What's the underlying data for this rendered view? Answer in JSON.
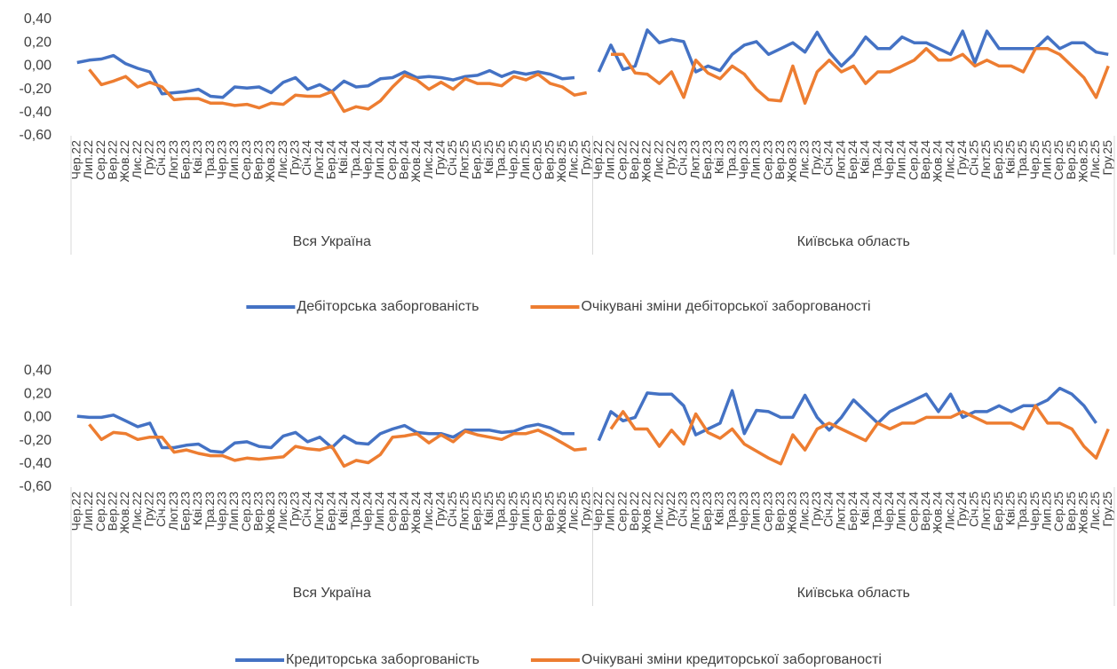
{
  "chart_data": [
    {
      "type": "line",
      "groups": [
        {
          "name": "Вся Україна",
          "categories": [
            "Чер.22",
            "Лип.22",
            "Сер.22",
            "Вер.22",
            "Жов.22",
            "Лис.22",
            "Гру.22",
            "Січ.23",
            "Лют.23",
            "Бер.23",
            "Кві.23",
            "Тра.23",
            "Чер.23",
            "Лип.23",
            "Сер.23",
            "Вер.23",
            "Жов.23",
            "Лис.23",
            "Гру.23",
            "Січ.24",
            "Лют.24",
            "Бер.24",
            "Кві.24",
            "Тра.24",
            "Чер.24",
            "Лип.24",
            "Сер.24",
            "Вер.24",
            "Жов.24",
            "Лис.24",
            "Гру.24",
            "Січ.25",
            "Лют.25",
            "Бер.25",
            "Кві.25",
            "Тра.25",
            "Чер.25",
            "Лип.25",
            "Сер.25",
            "Вер.25",
            "Жов.25",
            "Лис.25",
            "Гру.25"
          ]
        },
        {
          "name": "Київська область",
          "categories": [
            "Чер.22",
            "Лип.22",
            "Сер.22",
            "Вер.22",
            "Жов.22",
            "Лис.22",
            "Гру.22",
            "Січ.23",
            "Лют.23",
            "Бер.23",
            "Кві.23",
            "Тра.23",
            "Чер.23",
            "Лип.23",
            "Сер.23",
            "Вер.23",
            "Жов.23",
            "Лис.23",
            "Гру.23",
            "Січ.24",
            "Лют.24",
            "Бер.24",
            "Кві.24",
            "Тра.24",
            "Чер.24",
            "Лип.24",
            "Сер.24",
            "Вер.24",
            "Жов.24",
            "Лис.24",
            "Гру.24",
            "Січ.25",
            "Лют.25",
            "Бер.25",
            "Кві.25",
            "Тра.25",
            "Чер.25",
            "Лип.25",
            "Сер.25",
            "Вер.25",
            "Жов.25",
            "Лис.25",
            "Гру.25"
          ]
        }
      ],
      "series": [
        {
          "name": "Дебіторська заборгованість",
          "color": "#4472c4",
          "values": [
            0.03,
            0.05,
            0.06,
            0.09,
            0.02,
            -0.02,
            -0.05,
            -0.24,
            -0.23,
            -0.22,
            -0.2,
            -0.26,
            -0.27,
            -0.18,
            -0.19,
            -0.18,
            -0.23,
            -0.14,
            -0.1,
            -0.2,
            -0.16,
            -0.22,
            -0.13,
            -0.18,
            -0.17,
            -0.11,
            -0.1,
            -0.05,
            -0.1,
            -0.09,
            -0.1,
            -0.12,
            -0.09,
            -0.08,
            -0.04,
            -0.09,
            -0.05,
            -0.07,
            -0.05,
            -0.07,
            -0.11,
            -0.1,
            null,
            -0.05,
            0.18,
            -0.03,
            0.0,
            0.31,
            0.2,
            0.23,
            0.21,
            -0.05,
            0.0,
            -0.04,
            0.1,
            0.18,
            0.21,
            0.1,
            0.15,
            0.2,
            0.12,
            0.29,
            0.12,
            0.0,
            0.1,
            0.25,
            0.15,
            0.15,
            0.25,
            0.2,
            0.2,
            0.15,
            0.1,
            0.3,
            0.03,
            0.3,
            0.15,
            0.15,
            0.15,
            0.15,
            0.25,
            0.15,
            0.2,
            0.2,
            0.12,
            0.1
          ]
        },
        {
          "name": "Очікувані зміни дебіторської заборгованості",
          "color": "#ed7d31",
          "values": [
            null,
            -0.03,
            -0.16,
            -0.13,
            -0.09,
            -0.18,
            -0.14,
            -0.18,
            -0.29,
            -0.28,
            -0.28,
            -0.32,
            -0.32,
            -0.34,
            -0.33,
            -0.36,
            -0.32,
            -0.33,
            -0.25,
            -0.26,
            -0.26,
            -0.22,
            -0.39,
            -0.35,
            -0.37,
            -0.3,
            -0.18,
            -0.08,
            -0.12,
            -0.2,
            -0.14,
            -0.2,
            -0.11,
            -0.15,
            -0.15,
            -0.17,
            -0.09,
            -0.12,
            -0.07,
            -0.15,
            -0.18,
            -0.25,
            -0.23,
            null,
            0.1,
            0.1,
            -0.06,
            -0.07,
            -0.15,
            -0.05,
            -0.27,
            0.05,
            -0.06,
            -0.11,
            0.0,
            -0.07,
            -0.2,
            -0.29,
            -0.3,
            0.0,
            -0.32,
            -0.05,
            0.05,
            -0.05,
            0.0,
            -0.15,
            -0.05,
            -0.05,
            0.0,
            0.05,
            0.15,
            0.05,
            0.05,
            0.1,
            0.0,
            0.05,
            0.0,
            0.0,
            -0.05,
            0.15,
            0.15,
            0.1,
            0.0,
            -0.1,
            -0.27,
            0.0
          ]
        }
      ],
      "ylim": [
        -0.6,
        0.4
      ],
      "yticks": [
        {
          "value": 0.4,
          "label": "0,40"
        },
        {
          "value": 0.2,
          "label": "0,20"
        },
        {
          "value": 0,
          "label": "0,00"
        },
        {
          "value": -0.2,
          "label": "-0,20"
        },
        {
          "value": -0.4,
          "label": "-0,40"
        },
        {
          "value": -0.6,
          "label": "-0,60"
        }
      ]
    },
    {
      "type": "line",
      "groups": [
        {
          "name": "Вся Україна",
          "categories": [
            "Чер.22",
            "Лип.22",
            "Сер.22",
            "Вер.22",
            "Жов.22",
            "Лис.22",
            "Гру.22",
            "Січ.23",
            "Лют.23",
            "Бер.23",
            "Кві.23",
            "Тра.23",
            "Чер.23",
            "Лип.23",
            "Сер.23",
            "Вер.23",
            "Жов.23",
            "Лис.23",
            "Гру.23",
            "Січ.24",
            "Лют.24",
            "Бер.24",
            "Кві.24",
            "Тра.24",
            "Чер.24",
            "Лип.24",
            "Сер.24",
            "Вер.24",
            "Жов.24",
            "Лис.24",
            "Гру.24",
            "Січ.25",
            "Лют.25",
            "Бер.25",
            "Кві.25",
            "Тра.25",
            "Чер.25",
            "Лип.25",
            "Сер.25",
            "Вер.25",
            "Жов.25",
            "Лис.25",
            "Гру.25"
          ]
        },
        {
          "name": "Київська область",
          "categories": [
            "Чер.22",
            "Лип.22",
            "Сер.22",
            "Вер.22",
            "Жов.22",
            "Лис.22",
            "Гру.22",
            "Січ.23",
            "Лют.23",
            "Бер.23",
            "Кві.23",
            "Тра.23",
            "Чер.23",
            "Лип.23",
            "Сер.23",
            "Вер.23",
            "Жов.23",
            "Лис.23",
            "Гру.23",
            "Січ.24",
            "Лют.24",
            "Бер.24",
            "Кві.24",
            "Тра.24",
            "Чер.24",
            "Лип.24",
            "Сер.24",
            "Вер.24",
            "Жов.24",
            "Лис.24",
            "Гру.24",
            "Січ.25",
            "Лют.25",
            "Бер.25",
            "Кві.25",
            "Тра.25",
            "Чер.25",
            "Лип.25",
            "Сер.25",
            "Вер.25",
            "Жов.25",
            "Лис.25",
            "Гру.25"
          ]
        }
      ],
      "series": [
        {
          "name": "Кредиторська заборгованість",
          "color": "#4472c4",
          "values": [
            0.01,
            0.0,
            0.0,
            0.02,
            -0.03,
            -0.08,
            -0.05,
            -0.26,
            -0.26,
            -0.24,
            -0.23,
            -0.29,
            -0.3,
            -0.22,
            -0.21,
            -0.25,
            -0.26,
            -0.16,
            -0.13,
            -0.21,
            -0.17,
            -0.26,
            -0.16,
            -0.22,
            -0.23,
            -0.14,
            -0.1,
            -0.07,
            -0.13,
            -0.14,
            -0.14,
            -0.17,
            -0.11,
            -0.11,
            -0.11,
            -0.13,
            -0.12,
            -0.08,
            -0.06,
            -0.09,
            -0.14,
            -0.14,
            null,
            -0.2,
            0.05,
            -0.03,
            0.0,
            0.21,
            0.2,
            0.2,
            0.1,
            -0.15,
            -0.1,
            -0.05,
            0.23,
            -0.14,
            0.06,
            0.05,
            0.0,
            0.0,
            0.19,
            0.0,
            -0.11,
            0.0,
            0.15,
            0.05,
            -0.05,
            0.05,
            0.1,
            0.15,
            0.2,
            0.05,
            0.2,
            0.0,
            0.05,
            0.05,
            0.1,
            0.05,
            0.1,
            0.1,
            0.15,
            0.25,
            0.2,
            0.1,
            -0.05,
            null
          ]
        },
        {
          "name": "Очікувані зміни кредиторської заборгованості",
          "color": "#ed7d31",
          "values": [
            null,
            -0.06,
            -0.19,
            -0.13,
            -0.14,
            -0.19,
            -0.17,
            -0.17,
            -0.3,
            -0.28,
            -0.31,
            -0.33,
            -0.33,
            -0.37,
            -0.35,
            -0.36,
            -0.35,
            -0.34,
            -0.25,
            -0.27,
            -0.28,
            -0.25,
            -0.42,
            -0.37,
            -0.39,
            -0.32,
            -0.17,
            -0.16,
            -0.14,
            -0.22,
            -0.15,
            -0.21,
            -0.12,
            -0.15,
            -0.17,
            -0.19,
            -0.14,
            -0.14,
            -0.11,
            -0.16,
            -0.22,
            -0.28,
            -0.27,
            null,
            -0.1,
            0.05,
            -0.1,
            -0.1,
            -0.25,
            -0.11,
            -0.23,
            0.03,
            -0.13,
            -0.18,
            -0.1,
            -0.23,
            -0.29,
            -0.35,
            -0.4,
            -0.15,
            -0.28,
            -0.1,
            -0.05,
            -0.1,
            -0.15,
            -0.2,
            -0.05,
            -0.1,
            -0.05,
            -0.05,
            0.0,
            0.0,
            0.0,
            0.05,
            0.0,
            -0.05,
            -0.05,
            -0.05,
            -0.1,
            0.1,
            -0.05,
            -0.05,
            -0.1,
            -0.25,
            -0.35,
            -0.1
          ]
        }
      ],
      "ylim": [
        -0.6,
        0.4
      ],
      "yticks": [
        {
          "value": 0.4,
          "label": "0,40"
        },
        {
          "value": 0.2,
          "label": "0,20"
        },
        {
          "value": 0,
          "label": "0,00"
        },
        {
          "value": -0.2,
          "label": "-0,20"
        },
        {
          "value": -0.4,
          "label": "-0,40"
        },
        {
          "value": -0.6,
          "label": "-0,60"
        }
      ]
    }
  ]
}
